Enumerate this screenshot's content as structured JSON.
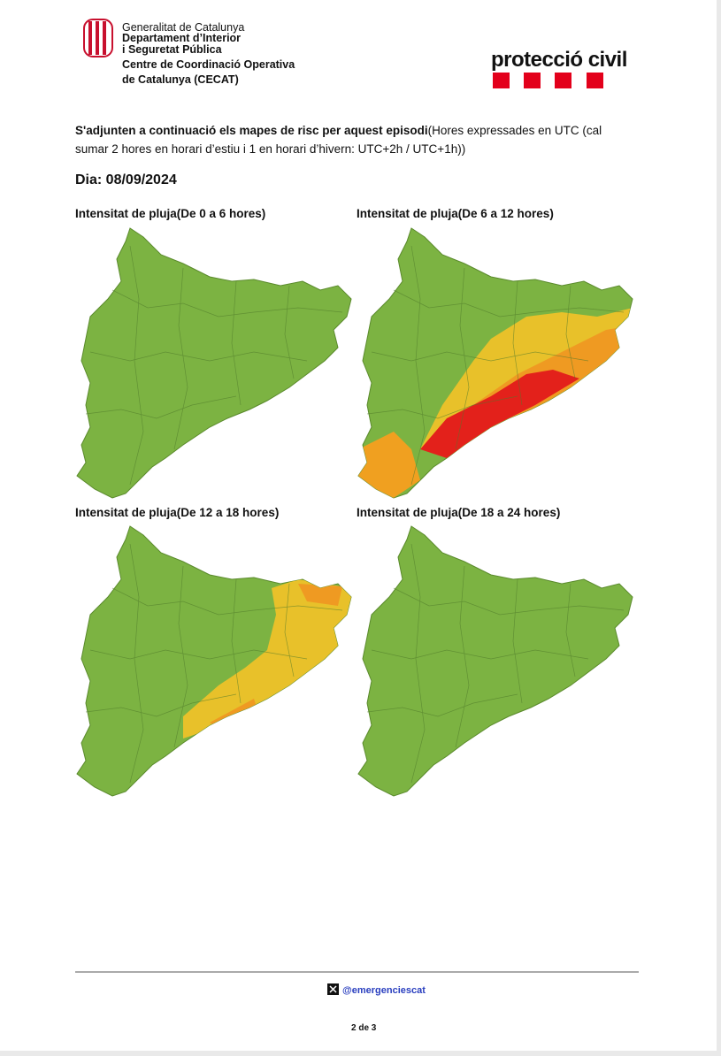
{
  "header": {
    "org_lines": [
      "Generalitat de Catalunya",
      "Departament d’Interior",
      "i Seguretat Pública",
      "Centre de Coordinació Operativa",
      "de Catalunya (CECAT)"
    ],
    "brand": "protecció civil"
  },
  "intro": {
    "bold": "S'adjunten a continuació els mapes de risc per aquest episodi",
    "normal": "(Hores expressades en UTC (cal sumar 2 hores en horari d’estiu i 1 en horari d’hivern: UTC+2h / UTC+1h))"
  },
  "date": "Dia: 08/09/2024",
  "maps": [
    {
      "title": "Intensitat de pluja(De 0 a 6 hores)"
    },
    {
      "title": "Intensitat de pluja(De 6 a 12 hores)"
    },
    {
      "title": "Intensitat de pluja(De 12 a 18 hores)"
    },
    {
      "title": "Intensitat de pluja(De 18 a 24 hores)"
    }
  ],
  "footer": {
    "handle": "@emergenciescat",
    "page": "2 de 3"
  }
}
